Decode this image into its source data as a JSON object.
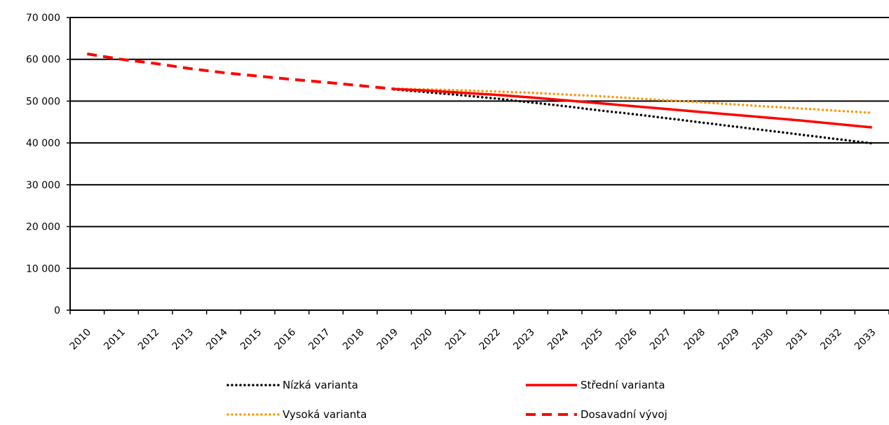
{
  "chart_data": {
    "type": "line",
    "title": "",
    "xlabel": "",
    "ylabel": "",
    "x": [
      "2010",
      "2011",
      "2012",
      "2013",
      "2014",
      "2015",
      "2016",
      "2017",
      "2018",
      "2019",
      "2020",
      "2021",
      "2022",
      "2023",
      "2024",
      "2025",
      "2026",
      "2027",
      "2028",
      "2029",
      "2030",
      "2031",
      "2032",
      "2033"
    ],
    "ylim": [
      0,
      70000
    ],
    "yticks": [
      0,
      10000,
      20000,
      30000,
      40000,
      50000,
      60000,
      70000
    ],
    "ytick_labels": [
      "0",
      "10 000",
      "20 000",
      "30 000",
      "40 000",
      "50 000",
      "60 000",
      "70 000"
    ],
    "grid": true,
    "legend_position": "bottom",
    "series": [
      {
        "name": "Nízká varianta",
        "color": "#000000",
        "style": "dotted",
        "values": [
          null,
          null,
          null,
          null,
          null,
          null,
          null,
          null,
          null,
          52800,
          52100,
          51400,
          50600,
          49700,
          48800,
          47800,
          46900,
          45900,
          44900,
          43900,
          42900,
          41900,
          40900,
          39900
        ]
      },
      {
        "name": "Střední varianta",
        "color": "#ff0000",
        "style": "solid",
        "values": [
          null,
          null,
          null,
          null,
          null,
          null,
          null,
          null,
          null,
          52900,
          52500,
          52000,
          51500,
          50900,
          50200,
          49500,
          48800,
          48100,
          47400,
          46700,
          46000,
          45300,
          44500,
          43700
        ]
      },
      {
        "name": "Vysoká varianta",
        "color": "#ff9900",
        "style": "dotted",
        "values": [
          null,
          null,
          null,
          null,
          null,
          null,
          null,
          null,
          null,
          53000,
          52800,
          52600,
          52300,
          52000,
          51600,
          51200,
          50700,
          50200,
          49700,
          49200,
          48700,
          48200,
          47700,
          47200
        ]
      },
      {
        "name": "Dosavadní vývoj",
        "color": "#ff0000",
        "style": "dashed",
        "values": [
          61300,
          60000,
          59000,
          57800,
          56800,
          56000,
          55200,
          54500,
          53700,
          52900,
          null,
          null,
          null,
          null,
          null,
          null,
          null,
          null,
          null,
          null,
          null,
          null,
          null,
          null
        ]
      }
    ]
  }
}
